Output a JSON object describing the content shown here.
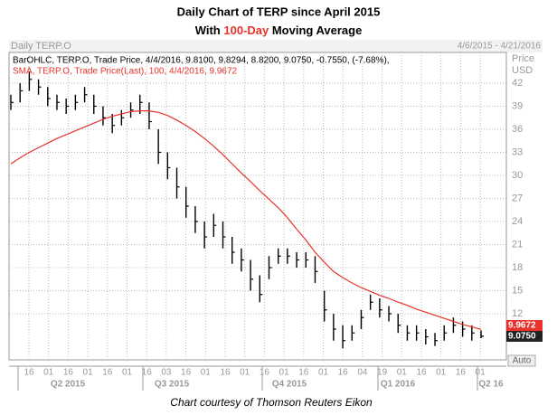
{
  "chart_data": {
    "type": "ohlc",
    "title": "Daily Chart of TERP since April 2015",
    "subtitle_parts": [
      "With ",
      "100-Day",
      " Moving Average"
    ],
    "header": "Daily TERP.O",
    "date_range": "4/6/2015 - 4/21/2016",
    "axis_label": [
      "Price",
      "USD"
    ],
    "scale_mode": "Auto",
    "footer": "Chart courtesy of Thomson Reuters Eikon",
    "ylim": [
      6,
      46
    ],
    "yticks": [
      12,
      15,
      18,
      21,
      24,
      27,
      30,
      33,
      36,
      39,
      42
    ],
    "grid": true,
    "xtick_labels": [
      "16",
      "01",
      "16",
      "01",
      "16",
      "01",
      "16",
      "03",
      "16",
      "01",
      "16",
      "01",
      "16",
      "01",
      "16",
      "01",
      "16",
      "04",
      "19",
      "01",
      "16",
      "01",
      "16",
      "01"
    ],
    "quarters": [
      "Q2 2015",
      "Q3 2015",
      "Q4 2015",
      "Q1 2016",
      "Q2 16"
    ],
    "series": [
      {
        "name": "BarOHLC, TERP.O, Trade Price, 4/4/2016, 9.8100, 9.8294, 8.8200, 9.0750, -0.7550, (-7.68%),",
        "color": "#000000",
        "end_label": "9.0750",
        "values": [
          39.5,
          41,
          42.5,
          41.5,
          40,
          39.5,
          39,
          39.5,
          40.5,
          39,
          37.5,
          36.5,
          37.5,
          38.5,
          39.5,
          37,
          33,
          31,
          28.5,
          26,
          24,
          22,
          23.5,
          22,
          20,
          19,
          16.5,
          14.5,
          18,
          19.5,
          19.5,
          19,
          19,
          17.5,
          12.5,
          10,
          8.5,
          9.5,
          11.5,
          13.5,
          12.5,
          12,
          10.5,
          9.5,
          9.5,
          9,
          8.5,
          9.5,
          10.5,
          10,
          9.5,
          9.075
        ],
        "high": [
          40.5,
          42,
          43.5,
          42.5,
          41.5,
          40.5,
          40,
          40.5,
          41.5,
          40.5,
          39,
          38,
          38.5,
          39.5,
          40.5,
          39.5,
          36,
          33,
          31,
          28.5,
          26,
          24,
          25,
          24,
          22,
          20.5,
          19,
          17,
          19.5,
          20.5,
          20.5,
          20,
          20,
          19.5,
          15,
          12,
          10.5,
          10.5,
          12.5,
          14.5,
          14,
          13,
          12,
          10.5,
          10.5,
          10,
          9.5,
          10.5,
          11.5,
          11,
          10.5,
          9.83
        ],
        "low": [
          38.5,
          39.5,
          41,
          40.5,
          39,
          38.5,
          38,
          38.5,
          39.5,
          38,
          36.5,
          35.5,
          36.5,
          37.5,
          38,
          36,
          31.5,
          29.5,
          27,
          24.5,
          22.5,
          20.5,
          22,
          20.5,
          18.5,
          17.5,
          15,
          13.5,
          16.5,
          18.5,
          18.5,
          18,
          18,
          16,
          11,
          8.5,
          7.5,
          8.5,
          10,
          12.5,
          11.5,
          11,
          9.5,
          8.5,
          8.5,
          8,
          7.8,
          8.5,
          9.5,
          9,
          8.5,
          8.82
        ]
      },
      {
        "name": "SMA, TERP.O, Trade Price(Last), 100, 4/4/2016, 9.9672",
        "color": "#e8322b",
        "end_label": "9.9672",
        "values": [
          31.5,
          32.3,
          33,
          33.6,
          34.2,
          34.8,
          35.3,
          35.8,
          36.3,
          36.8,
          37.3,
          37.7,
          38,
          38.3,
          38.4,
          38.4,
          38.2,
          37.8,
          37.2,
          36.5,
          35.7,
          34.8,
          33.8,
          32.7,
          31.5,
          30.3,
          29.2,
          28,
          26.9,
          25.8,
          24.5,
          23,
          21.6,
          20,
          18.7,
          17.5,
          16.7,
          16,
          15.4,
          14.9,
          14.4,
          14,
          13.5,
          13.1,
          12.6,
          12.2,
          11.8,
          11.4,
          11,
          10.6,
          10.3,
          9.9672
        ]
      }
    ]
  }
}
